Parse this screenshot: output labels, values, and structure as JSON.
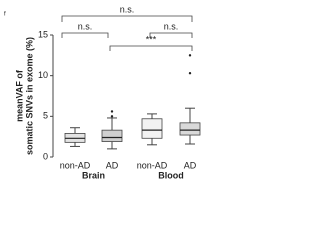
{
  "panel_label": "f",
  "chart_data": {
    "type": "box",
    "ylabel": [
      "meanVAF of",
      "somatic SNVs in exome (%)"
    ],
    "categories": [
      "non-AD",
      "AD",
      "non-AD",
      "AD"
    ],
    "group_labels": [
      "Brain",
      "Blood"
    ],
    "ylim": [
      0,
      15
    ],
    "yticks": [
      0,
      5,
      10,
      15
    ],
    "boxes": [
      {
        "whislo": 1.3,
        "q1": 1.8,
        "med": 2.3,
        "q3": 2.9,
        "whishi": 3.6,
        "fliers": [],
        "color": "#e3e3e3"
      },
      {
        "whislo": 1.0,
        "q1": 1.9,
        "med": 2.4,
        "q3": 3.3,
        "whishi": 4.8,
        "fliers": [
          5.6,
          5.0
        ],
        "color": "#d0d0d0"
      },
      {
        "whislo": 1.5,
        "q1": 2.3,
        "med": 3.3,
        "q3": 4.7,
        "whishi": 5.3,
        "fliers": [],
        "color": "#f2f2f2"
      },
      {
        "whislo": 1.6,
        "q1": 2.7,
        "med": 3.3,
        "q3": 4.2,
        "whishi": 6.0,
        "fliers": [
          10.3,
          12.5
        ],
        "color": "#d9d9d9"
      }
    ],
    "annotations": [
      "n.s.",
      "n.s.",
      "n.s.",
      "***"
    ]
  }
}
